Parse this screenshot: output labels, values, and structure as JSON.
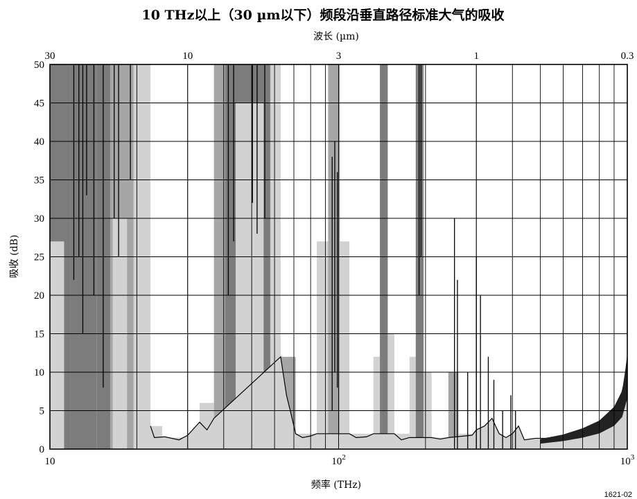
{
  "chart_data": {
    "type": "area",
    "title": "10 THz以上（30 µm以下）频段沿垂直路径标准大气的吸收",
    "xlabel": "频率 (THz)",
    "x2label": "波长 (µm)",
    "ylabel": "吸收 (dB)",
    "xscale": "log",
    "xlim": [
      10,
      1000
    ],
    "ylim": [
      0,
      50
    ],
    "grid": true,
    "x_tick_labels": [
      {
        "value": 10,
        "base": "10",
        "exp": ""
      },
      {
        "value": 100,
        "base": "10",
        "exp": "2"
      },
      {
        "value": 1000,
        "base": "10",
        "exp": "3"
      }
    ],
    "y_ticks": [
      0,
      5,
      10,
      15,
      20,
      25,
      30,
      35,
      40,
      45,
      50
    ],
    "top_ticks": [
      {
        "label": "30",
        "freq": 10
      },
      {
        "label": "10",
        "freq": 30
      },
      {
        "label": "3",
        "freq": 100
      },
      {
        "label": "1",
        "freq": 300
      },
      {
        "label": "0.3",
        "freq": 1000
      }
    ],
    "note": "1621-02",
    "colors": {
      "dark": "#7c7c7c",
      "medium": "#a6a6a6",
      "light": "#d2d2d2",
      "line": "#000000",
      "grid": "#000000"
    },
    "bands": [
      {
        "f1": 10,
        "f2": 11.8,
        "color": "dark",
        "y": 50
      },
      {
        "f1": 10,
        "f2": 11.2,
        "color": "light",
        "y": 27
      },
      {
        "f1": 11.8,
        "f2": 14.5,
        "color": "dark",
        "y": 50
      },
      {
        "f1": 14.5,
        "f2": 16.2,
        "color": "dark",
        "y": 50
      },
      {
        "f1": 16.2,
        "f2": 19.5,
        "color": "medium",
        "y": 50
      },
      {
        "f1": 16.5,
        "f2": 18.5,
        "color": "light",
        "y": 30
      },
      {
        "f1": 19.5,
        "f2": 22.3,
        "color": "light",
        "y": 50
      },
      {
        "f1": 22.3,
        "f2": 24.5,
        "color": "light",
        "y": 3
      },
      {
        "f1": 24.5,
        "f2": 33,
        "color": "light",
        "y": 1.5
      },
      {
        "f1": 33,
        "f2": 37,
        "color": "light",
        "y": 6
      },
      {
        "f1": 37,
        "f2": 40.5,
        "color": "medium",
        "y": 50
      },
      {
        "f1": 40.5,
        "f2": 58,
        "color": "dark",
        "y": 50
      },
      {
        "f1": 44,
        "f2": 55,
        "color": "light",
        "y": 45
      },
      {
        "f1": 58,
        "f2": 63,
        "color": "light",
        "y": 50
      },
      {
        "f1": 63,
        "f2": 71,
        "color": "medium",
        "y": 12
      },
      {
        "f1": 71,
        "f2": 84,
        "color": "light",
        "y": 2
      },
      {
        "f1": 84,
        "f2": 92,
        "color": "light",
        "y": 27
      },
      {
        "f1": 92,
        "f2": 101,
        "color": "medium",
        "y": 50
      },
      {
        "f1": 101,
        "f2": 109,
        "color": "light",
        "y": 27
      },
      {
        "f1": 109,
        "f2": 132,
        "color": "light",
        "y": 2
      },
      {
        "f1": 132,
        "f2": 139,
        "color": "light",
        "y": 12
      },
      {
        "f1": 139,
        "f2": 148,
        "color": "dark",
        "y": 50
      },
      {
        "f1": 148,
        "f2": 156,
        "color": "light",
        "y": 15
      },
      {
        "f1": 156,
        "f2": 176,
        "color": "light",
        "y": 2
      },
      {
        "f1": 176,
        "f2": 185,
        "color": "light",
        "y": 12
      },
      {
        "f1": 185,
        "f2": 197,
        "color": "dark",
        "y": 50
      },
      {
        "f1": 197,
        "f2": 210,
        "color": "light",
        "y": 10
      },
      {
        "f1": 210,
        "f2": 240,
        "color": "light",
        "y": 1.5
      },
      {
        "f1": 240,
        "f2": 260,
        "color": "medium",
        "y": 10
      },
      {
        "f1": 260,
        "f2": 290,
        "color": "light",
        "y": 2
      }
    ],
    "envelope": [
      [
        22.3,
        3
      ],
      [
        23,
        1.5
      ],
      [
        25,
        1.6
      ],
      [
        28,
        1.2
      ],
      [
        30,
        1.8
      ],
      [
        33,
        3.5
      ],
      [
        35,
        2.5
      ],
      [
        37,
        4
      ],
      [
        63,
        12
      ],
      [
        66,
        7
      ],
      [
        68,
        5
      ],
      [
        71,
        2
      ],
      [
        75,
        1.5
      ],
      [
        80,
        1.7
      ],
      [
        84,
        2
      ],
      [
        109,
        2
      ],
      [
        115,
        1.5
      ],
      [
        125,
        1.6
      ],
      [
        132,
        2
      ],
      [
        156,
        2
      ],
      [
        165,
        1.2
      ],
      [
        176,
        1.5
      ],
      [
        210,
        1.5
      ],
      [
        225,
        1.3
      ],
      [
        240,
        1.5
      ],
      [
        290,
        1.8
      ],
      [
        300,
        2.5
      ],
      [
        320,
        3
      ],
      [
        340,
        4
      ],
      [
        360,
        2
      ],
      [
        380,
        1.5
      ],
      [
        400,
        2
      ],
      [
        420,
        3
      ],
      [
        440,
        1.2
      ],
      [
        480,
        1.4
      ],
      [
        520,
        1.4
      ],
      [
        560,
        1.6
      ],
      [
        600,
        1.8
      ],
      [
        650,
        2.2
      ],
      [
        700,
        2.6
      ],
      [
        750,
        3
      ],
      [
        800,
        3.5
      ],
      [
        850,
        4.2
      ],
      [
        900,
        5.2
      ],
      [
        950,
        6.8
      ],
      [
        980,
        9
      ],
      [
        1000,
        12
      ]
    ],
    "lines": [
      [
        12.1,
        50,
        22
      ],
      [
        12.6,
        50,
        25
      ],
      [
        13.0,
        50,
        15
      ],
      [
        13.4,
        50,
        33
      ],
      [
        14.2,
        50,
        20
      ],
      [
        15.3,
        50,
        8
      ],
      [
        16.7,
        50,
        30
      ],
      [
        17.3,
        50,
        25
      ],
      [
        19.0,
        50,
        35
      ],
      [
        41.5,
        50,
        20
      ],
      [
        43.3,
        50,
        27
      ],
      [
        50.3,
        50,
        32
      ],
      [
        52.2,
        50,
        28
      ],
      [
        55.5,
        50,
        30
      ],
      [
        95,
        38,
        5
      ],
      [
        97,
        40,
        10
      ],
      [
        99,
        36,
        8
      ],
      [
        190,
        50,
        20
      ],
      [
        193,
        50,
        25
      ],
      [
        252,
        30,
        0
      ],
      [
        258,
        22,
        0
      ],
      [
        280,
        10,
        0
      ],
      [
        300,
        25,
        0
      ],
      [
        310,
        20,
        0
      ],
      [
        330,
        12,
        0
      ],
      [
        345,
        9,
        0
      ],
      [
        370,
        5,
        0
      ],
      [
        395,
        7,
        0
      ],
      [
        410,
        5,
        0
      ]
    ]
  }
}
